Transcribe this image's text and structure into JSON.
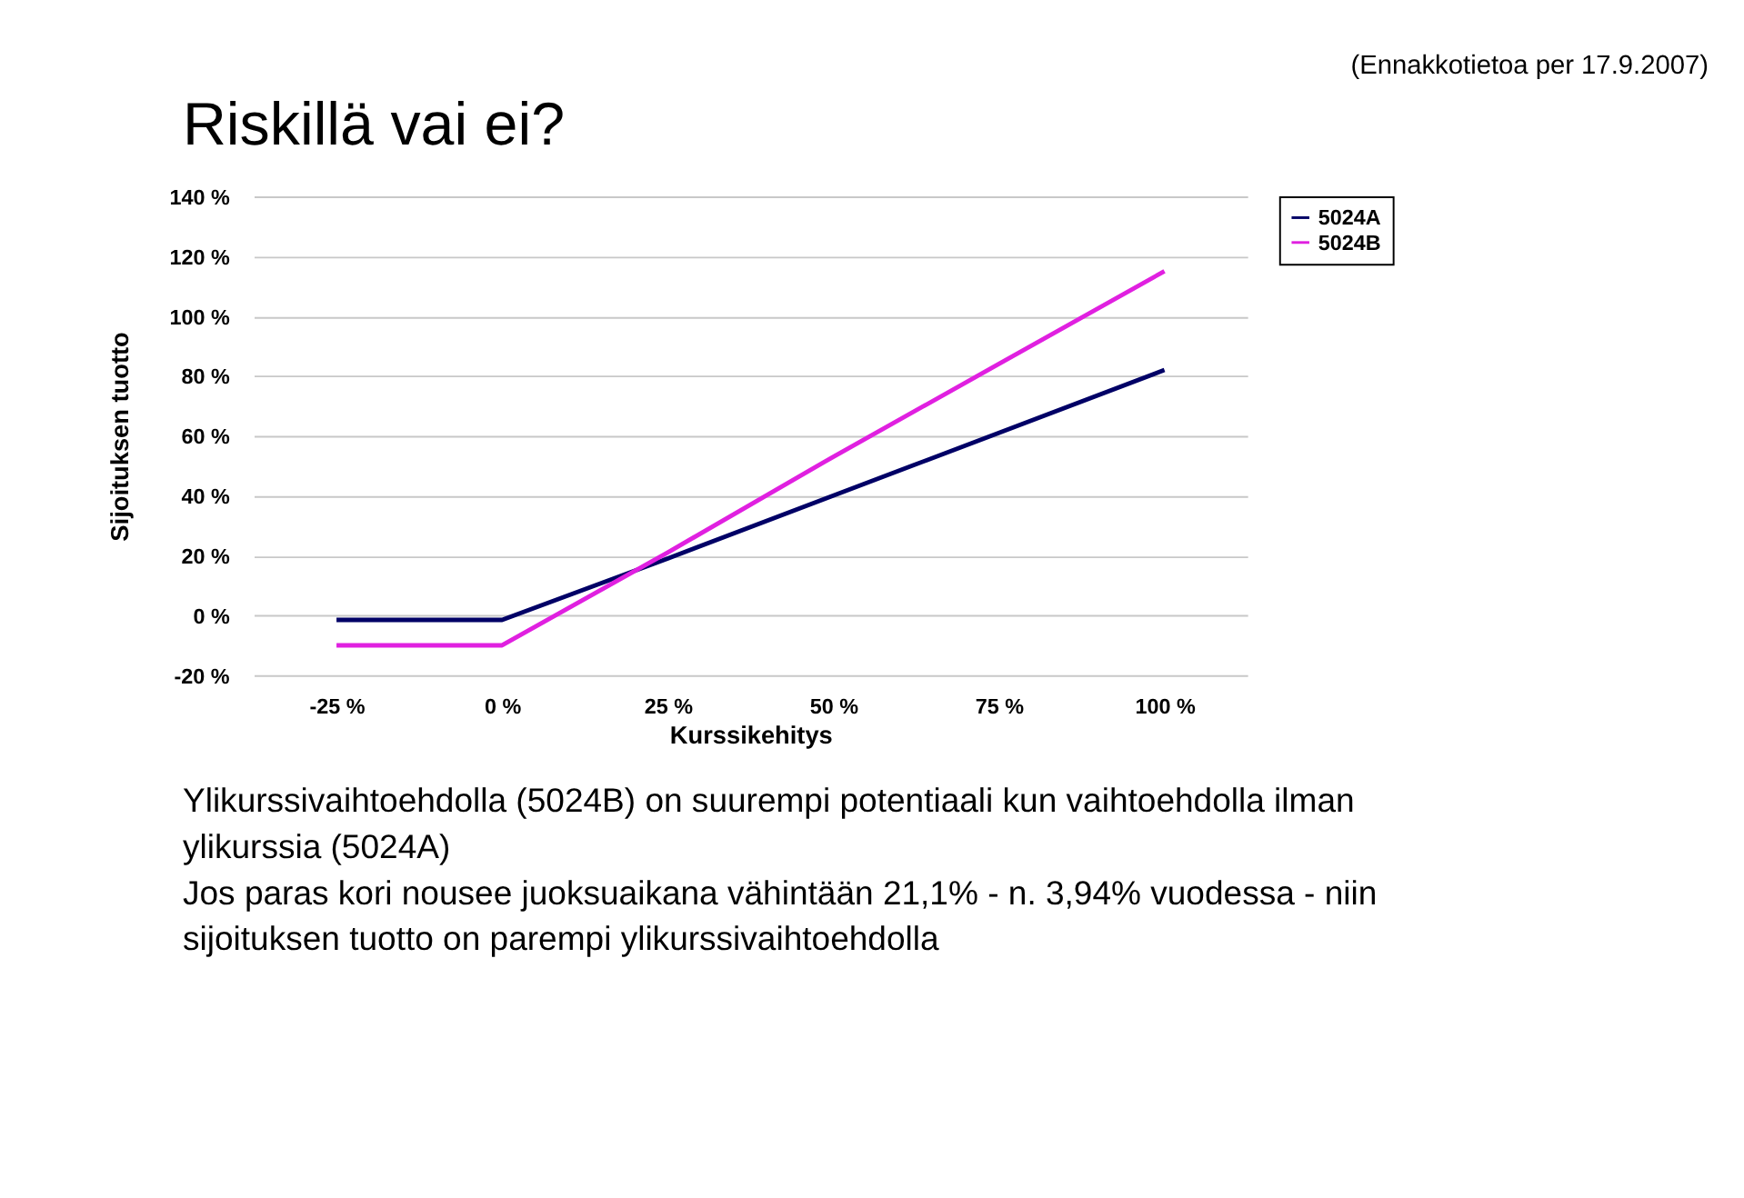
{
  "chart_data": {
    "type": "line",
    "title": "Riskillä vai ei?",
    "subtitle": "(Ennakkotietoa per 17.9.2007)",
    "xlabel": "Kurssikehitys",
    "ylabel": "Sijoituksen tuotto",
    "categories": [
      "-25 %",
      "0 %",
      "25 %",
      "50 %",
      "75 %",
      "100 %"
    ],
    "series": [
      {
        "name": "5024A",
        "color": "#000066",
        "values": [
          -1.5,
          -1.5,
          19,
          40,
          61,
          82
        ]
      },
      {
        "name": "5024B",
        "color": "#e020e0",
        "values": [
          -10,
          -10,
          21,
          53,
          84,
          115
        ]
      }
    ],
    "ylim": [
      -20,
      140
    ],
    "yticks": [
      {
        "value": -20,
        "label": "-20 %"
      },
      {
        "value": 0,
        "label": "0 %"
      },
      {
        "value": 20,
        "label": "20 %"
      },
      {
        "value": 40,
        "label": "40 %"
      },
      {
        "value": 60,
        "label": "60 %"
      },
      {
        "value": 80,
        "label": "80 %"
      },
      {
        "value": 100,
        "label": "100 %"
      },
      {
        "value": 120,
        "label": "120 %"
      },
      {
        "value": 140,
        "label": "140 %"
      }
    ],
    "grid": "y",
    "legend": "right",
    "marker": "none",
    "line_style": "solid",
    "annotations": [
      "Ylikurssivaihtoehdolla (5024B) on suurempi potentiaali kun vaihtoehdolla ilman ylikurssia (5024A)",
      "Jos paras kori nousee juoksuaikana vähintään 21,1% - n. 3,94% vuodessa - niin sijoituksen tuotto on parempi ylikurssivaihtoehdolla"
    ]
  }
}
